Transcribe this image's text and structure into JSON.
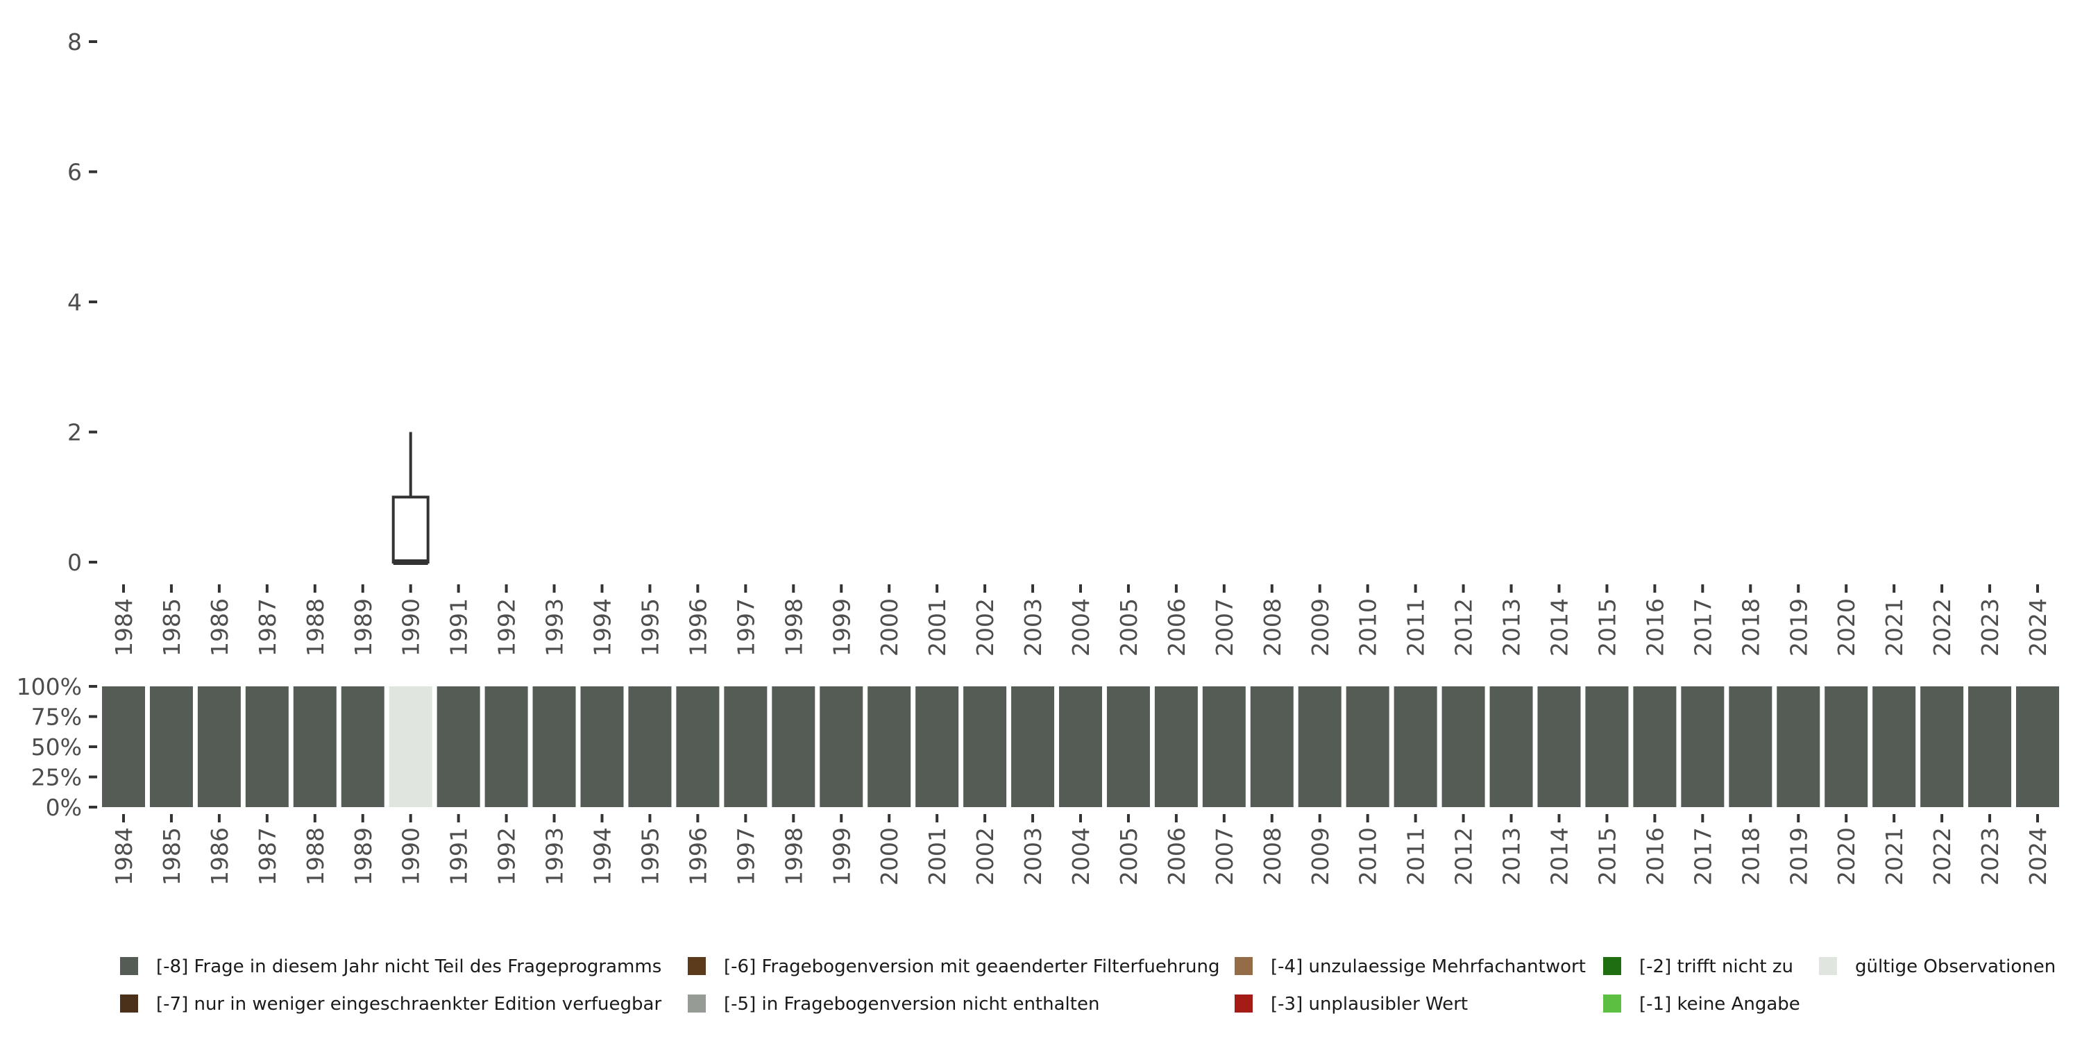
{
  "chart_data": [
    {
      "type": "box",
      "xlabel": "",
      "ylabel": "",
      "ylim": [
        0,
        8
      ],
      "yticks": [
        "0",
        "2",
        "4",
        "6",
        "8"
      ],
      "x": [
        "1984",
        "1985",
        "1986",
        "1987",
        "1988",
        "1989",
        "1990",
        "1991",
        "1992",
        "1993",
        "1994",
        "1995",
        "1996",
        "1997",
        "1998",
        "1999",
        "2000",
        "2001",
        "2002",
        "2003",
        "2004",
        "2005",
        "2006",
        "2007",
        "2008",
        "2009",
        "2010",
        "2011",
        "2012",
        "2013",
        "2014",
        "2015",
        "2016",
        "2017",
        "2018",
        "2019",
        "2020",
        "2021",
        "2022",
        "2023",
        "2024"
      ],
      "boxes": [
        {
          "x": "1990",
          "min": 0,
          "q1": 0,
          "median": 0,
          "q3": 1,
          "max": 2
        }
      ],
      "grid": false
    },
    {
      "type": "bar",
      "stacked": true,
      "ylim": [
        0,
        100
      ],
      "yticks": [
        "0%",
        "25%",
        "50%",
        "75%",
        "100%"
      ],
      "x": [
        "1984",
        "1985",
        "1986",
        "1987",
        "1988",
        "1989",
        "1990",
        "1991",
        "1992",
        "1993",
        "1994",
        "1995",
        "1996",
        "1997",
        "1998",
        "1999",
        "2000",
        "2001",
        "2002",
        "2003",
        "2004",
        "2005",
        "2006",
        "2007",
        "2008",
        "2009",
        "2010",
        "2011",
        "2012",
        "2013",
        "2014",
        "2015",
        "2016",
        "2017",
        "2018",
        "2019",
        "2020",
        "2021",
        "2022",
        "2023",
        "2024"
      ],
      "category_by_year": [
        "-8",
        "-8",
        "-8",
        "-8",
        "-8",
        "-8",
        "valid",
        "-8",
        "-8",
        "-8",
        "-8",
        "-8",
        "-8",
        "-8",
        "-8",
        "-8",
        "-8",
        "-8",
        "-8",
        "-8",
        "-8",
        "-8",
        "-8",
        "-8",
        "-8",
        "-8",
        "-8",
        "-8",
        "-8",
        "-8",
        "-8",
        "-8",
        "-8",
        "-8",
        "-8",
        "-8",
        "-8",
        "-8",
        "-8",
        "-8",
        "-8"
      ],
      "share_percent": 100,
      "legend_position": "bottom",
      "legend": [
        {
          "key": "-8",
          "label": "[-8] Frage in diesem Jahr nicht Teil des Frageprogramms",
          "color": "#555c55"
        },
        {
          "key": "-7",
          "label": "[-7] nur in weniger eingeschraenkter Edition verfuegbar",
          "color": "#4b3119"
        },
        {
          "key": "-6",
          "label": "[-6] Fragebogenversion mit geaenderter Filterfuehrung",
          "color": "#5b3b1b"
        },
        {
          "key": "-5",
          "label": "[-5] in Fragebogenversion nicht enthalten",
          "color": "#979b95"
        },
        {
          "key": "-4",
          "label": "[-4] unzulaessige Mehrfachantwort",
          "color": "#946c48"
        },
        {
          "key": "-3",
          "label": "[-3] unplausibler Wert",
          "color": "#a51c16"
        },
        {
          "key": "-2",
          "label": "[-2] trifft nicht zu",
          "color": "#1f6e12"
        },
        {
          "key": "-1",
          "label": "[-1] keine Angabe",
          "color": "#5cbf42"
        },
        {
          "key": "valid",
          "label": "gültige Observationen",
          "color": "#e1e5e0"
        }
      ]
    }
  ]
}
